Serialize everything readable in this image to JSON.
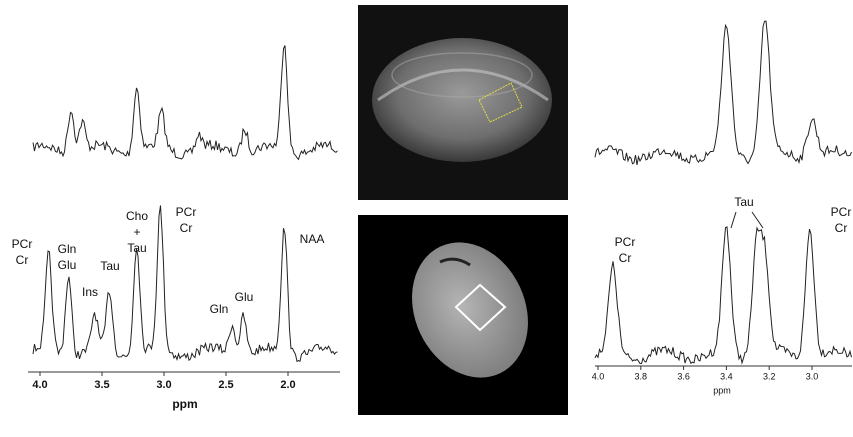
{
  "left_panel": {
    "labels": [
      [
        "PCr",
        "Cr"
      ],
      [
        "Gln",
        "Glu"
      ],
      [
        "Ins"
      ],
      [
        "Tau"
      ],
      [
        "Cho",
        "+",
        "Tau"
      ],
      [
        "PCr",
        "Cr"
      ],
      [
        "Gln"
      ],
      [
        "Glu"
      ],
      [
        "NAA"
      ]
    ],
    "ticks": [
      "4.0",
      "3.5",
      "3.0",
      "2.5",
      "2.0"
    ],
    "axis_title": "ppm"
  },
  "right_panel": {
    "labels": [
      [
        "PCr",
        "Cr"
      ],
      [
        "Tau"
      ],
      [
        "PCr",
        "Cr"
      ]
    ],
    "ticks": [
      "4.0",
      "3.8",
      "3.6",
      "3.4",
      "3.2",
      "3.0"
    ],
    "axis_title": "ppm"
  }
}
